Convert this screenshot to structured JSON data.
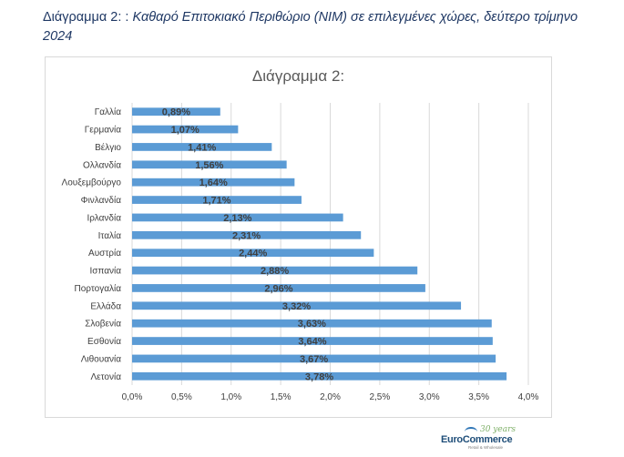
{
  "doc_title": {
    "lead": "Διάγραμμα 2: : ",
    "rest": "Καθαρό Επιτοκιακό Περιθώριο (NIM) σε επιλεγμένες χώρες, δεύτερο τρίμηνο 2024"
  },
  "chart_data": {
    "type": "bar",
    "orientation": "horizontal",
    "title": "Διάγραμμα 2:",
    "xlabel": "",
    "ylabel": "",
    "categories": [
      "Γαλλία",
      "Γερμανία",
      "Βέλγιο",
      "Ολλανδία",
      "Λουξεμβούργο",
      "Φινλανδία",
      "Ιρλανδία",
      "Ιταλία",
      "Αυστρία",
      "Ισπανία",
      "Πορτογαλία",
      "Ελλάδα",
      "Σλοβενία",
      "Εσθονία",
      "Λιθουανία",
      "Λετονία"
    ],
    "values": [
      0.89,
      1.07,
      1.41,
      1.56,
      1.64,
      1.71,
      2.13,
      2.31,
      2.44,
      2.88,
      2.96,
      3.32,
      3.63,
      3.64,
      3.67,
      3.78
    ],
    "data_labels": [
      "0,89%",
      "1,07%",
      "1,41%",
      "1,56%",
      "1,64%",
      "1,71%",
      "2,13%",
      "2,31%",
      "2,44%",
      "2,88%",
      "2,96%",
      "3,32%",
      "3,63%",
      "3,64%",
      "3,67%",
      "3,78%"
    ],
    "xlim": [
      0,
      4
    ],
    "xticks": [
      0,
      0.5,
      1,
      1.5,
      2,
      2.5,
      3,
      3.5,
      4
    ],
    "xtick_labels": [
      "0,0%",
      "0,5%",
      "1,0%",
      "1,5%",
      "2,0%",
      "2,5%",
      "3,0%",
      "3,5%",
      "4,0%"
    ],
    "grid": "vertical",
    "legend": "none",
    "bar_color": "#5b9bd5"
  },
  "logo": {
    "name": "EuroCommerce",
    "years": "30 years",
    "tagline": "Retail & Wholesale"
  }
}
